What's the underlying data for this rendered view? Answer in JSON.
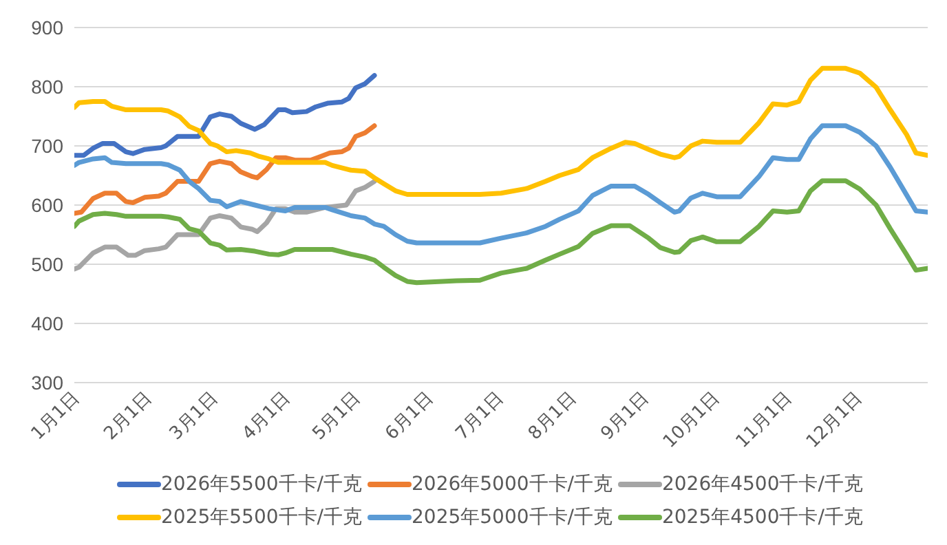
{
  "chart_data": {
    "type": "line",
    "legend": "bottom",
    "grid": "y",
    "marker": "none",
    "line_style": "solid",
    "xlim": [
      "--01-01",
      "--12-31"
    ],
    "xticks": [
      {
        "value": "--01-01",
        "label": "1月1日"
      },
      {
        "value": "--02-01",
        "label": "2月1日"
      },
      {
        "value": "--03-01",
        "label": "3月1日"
      },
      {
        "value": "--04-01",
        "label": "4月1日"
      },
      {
        "value": "--05-01",
        "label": "5月1日"
      },
      {
        "value": "--06-01",
        "label": "6月1日"
      },
      {
        "value": "--07-01",
        "label": "7月1日"
      },
      {
        "value": "--08-01",
        "label": "8月1日"
      },
      {
        "value": "--09-01",
        "label": "9月1日"
      },
      {
        "value": "--10-01",
        "label": "10月1日"
      },
      {
        "value": "--11-01",
        "label": "11月1日"
      },
      {
        "value": "--12-01",
        "label": "12月1日"
      }
    ],
    "ylim": [
      300,
      900
    ],
    "yticks": [
      300,
      400,
      500,
      600,
      700,
      800,
      900
    ],
    "series": [
      {
        "name": "2026年5500千卡/千克",
        "color": "#4472c4",
        "x": [
          "--01-01",
          "--01-05",
          "--01-09",
          "--01-13",
          "--01-18",
          "--01-23",
          "--01-26",
          "--01-31",
          "--02-07",
          "--02-09",
          "--02-14",
          "--02-23",
          "--02-28",
          "--03-04",
          "--03-09",
          "--03-13",
          "--03-19",
          "--03-23",
          "--03-29",
          "--04-01",
          "--04-04",
          "--04-10",
          "--04-14",
          "--04-19",
          "--04-25",
          "--04-28",
          "--05-01",
          "--05-05",
          "--05-09"
        ],
        "values": [
          684,
          684,
          696,
          704,
          704,
          690,
          687,
          694,
          697,
          700,
          716,
          716,
          749,
          754,
          750,
          738,
          728,
          736,
          761,
          761,
          756,
          758,
          766,
          772,
          774,
          780,
          798,
          805,
          819
        ]
      },
      {
        "name": "2026年5000千卡/千克",
        "color": "#ed7d31",
        "x": [
          "--01-01",
          "--01-04",
          "--01-09",
          "--01-14",
          "--01-19",
          "--01-23",
          "--01-26",
          "--01-31",
          "--02-06",
          "--02-09",
          "--02-14",
          "--02-23",
          "--02-28",
          "--03-04",
          "--03-09",
          "--03-13",
          "--03-18",
          "--03-20",
          "--03-24",
          "--03-28",
          "--04-01",
          "--04-05",
          "--04-12",
          "--04-16",
          "--04-20",
          "--04-25",
          "--04-28",
          "--05-01",
          "--05-05",
          "--05-09"
        ],
        "values": [
          586,
          588,
          611,
          620,
          620,
          606,
          604,
          613,
          615,
          620,
          640,
          640,
          670,
          674,
          670,
          656,
          648,
          646,
          660,
          680,
          680,
          676,
          676,
          682,
          688,
          690,
          696,
          716,
          722,
          734
        ]
      },
      {
        "name": "2026年4500千卡/千克",
        "color": "#a5a5a5",
        "x": [
          "--01-01",
          "--01-03",
          "--01-09",
          "--01-14",
          "--01-19",
          "--01-24",
          "--01-27",
          "--01-31",
          "--02-06",
          "--02-09",
          "--02-14",
          "--02-23",
          "--02-28",
          "--03-04",
          "--03-09",
          "--03-13",
          "--03-18",
          "--03-20",
          "--03-24",
          "--03-28",
          "--04-01",
          "--04-05",
          "--04-10",
          "--04-18",
          "--04-27",
          "--05-01",
          "--05-05",
          "--05-09"
        ],
        "values": [
          492,
          495,
          519,
          529,
          529,
          515,
          515,
          523,
          526,
          529,
          550,
          550,
          578,
          582,
          578,
          563,
          559,
          555,
          570,
          594,
          594,
          588,
          588,
          596,
          600,
          624,
          630,
          640
        ]
      },
      {
        "name": "2025年5500千卡/千克",
        "color": "#ffc000",
        "x": [
          "--01-01",
          "--01-03",
          "--01-09",
          "--01-14",
          "--01-17",
          "--01-23",
          "--02-07",
          "--02-10",
          "--02-15",
          "--02-19",
          "--02-23",
          "--02-28",
          "--03-03",
          "--03-07",
          "--03-11",
          "--03-17",
          "--03-21",
          "--03-25",
          "--03-29",
          "--04-18",
          "--04-21",
          "--04-29",
          "--05-05",
          "--05-09",
          "--05-13",
          "--05-18",
          "--05-23",
          "--05-27",
          "--06-04",
          "--06-23",
          "--07-02",
          "--07-13",
          "--07-21",
          "--07-27",
          "--08-04",
          "--08-10",
          "--08-18",
          "--08-24",
          "--08-28",
          "--09-03",
          "--09-08",
          "--09-14",
          "--09-16",
          "--09-21",
          "--09-26",
          "--10-02",
          "--10-12",
          "--10-20",
          "--10-26",
          "--11-01",
          "--11-06",
          "--11-11",
          "--11-16",
          "--11-26",
          "--12-02",
          "--12-09",
          "--12-15",
          "--12-22",
          "--12-26",
          "--12-31"
        ],
        "values": [
          765,
          773,
          775,
          775,
          767,
          761,
          761,
          759,
          749,
          733,
          726,
          704,
          700,
          690,
          692,
          688,
          682,
          678,
          672,
          672,
          667,
          659,
          657,
          646,
          636,
          624,
          618,
          618,
          618,
          618,
          620,
          628,
          640,
          650,
          660,
          680,
          696,
          706,
          704,
          694,
          686,
          680,
          682,
          700,
          708,
          706,
          706,
          739,
          771,
          769,
          775,
          811,
          831,
          831,
          823,
          799,
          761,
          719,
          688,
          684
        ]
      },
      {
        "name": "2025年5000千卡/千克",
        "color": "#5b9bd5",
        "x": [
          "--01-01",
          "--01-03",
          "--01-09",
          "--01-14",
          "--01-17",
          "--01-23",
          "--02-07",
          "--02-10",
          "--02-15",
          "--02-19",
          "--02-23",
          "--02-28",
          "--03-04",
          "--03-07",
          "--03-13",
          "--03-19",
          "--03-25",
          "--04-01",
          "--04-05",
          "--04-18",
          "--04-21",
          "--04-29",
          "--05-05",
          "--05-09",
          "--05-13",
          "--05-18",
          "--05-23",
          "--05-27",
          "--06-04",
          "--06-23",
          "--07-02",
          "--07-13",
          "--07-21",
          "--07-27",
          "--08-04",
          "--08-10",
          "--08-18",
          "--08-28",
          "--09-03",
          "--09-08",
          "--09-14",
          "--09-16",
          "--09-21",
          "--09-26",
          "--10-02",
          "--10-12",
          "--10-20",
          "--10-26",
          "--11-01",
          "--11-06",
          "--11-11",
          "--11-16",
          "--11-26",
          "--12-02",
          "--12-09",
          "--12-15",
          "--12-22",
          "--12-26",
          "--12-31"
        ],
        "values": [
          667,
          672,
          678,
          680,
          672,
          670,
          670,
          668,
          659,
          640,
          628,
          608,
          606,
          597,
          606,
          600,
          594,
          590,
          596,
          596,
          592,
          582,
          578,
          568,
          564,
          550,
          539,
          536,
          536,
          536,
          544,
          553,
          564,
          576,
          590,
          616,
          632,
          632,
          618,
          604,
          588,
          590,
          612,
          620,
          614,
          614,
          648,
          680,
          677,
          677,
          712,
          734,
          734,
          723,
          700,
          664,
          617,
          590,
          588
        ]
      },
      {
        "name": "2025年4500千卡/千克",
        "color": "#70ad47",
        "x": [
          "--01-01",
          "--01-03",
          "--01-09",
          "--01-14",
          "--01-19",
          "--01-23",
          "--02-07",
          "--02-10",
          "--02-15",
          "--02-19",
          "--02-23",
          "--02-28",
          "--03-04",
          "--03-07",
          "--03-13",
          "--03-19",
          "--03-25",
          "--03-29",
          "--04-01",
          "--04-05",
          "--04-21",
          "--04-29",
          "--05-05",
          "--05-09",
          "--05-13",
          "--05-18",
          "--05-23",
          "--05-27",
          "--06-13",
          "--06-23",
          "--07-02",
          "--07-13",
          "--07-21",
          "--07-27",
          "--08-04",
          "--08-10",
          "--08-18",
          "--08-26",
          "--09-03",
          "--09-08",
          "--09-14",
          "--09-16",
          "--09-21",
          "--09-26",
          "--10-02",
          "--10-12",
          "--10-20",
          "--10-26",
          "--11-01",
          "--11-06",
          "--11-11",
          "--11-16",
          "--11-26",
          "--12-02",
          "--12-09",
          "--12-15",
          "--12-22",
          "--12-26",
          "--12-31"
        ],
        "values": [
          564,
          573,
          584,
          586,
          584,
          581,
          581,
          580,
          576,
          560,
          556,
          536,
          532,
          524,
          525,
          522,
          517,
          516,
          519,
          525,
          525,
          517,
          512,
          507,
          495,
          481,
          471,
          469,
          472,
          473,
          485,
          493,
          507,
          517,
          530,
          552,
          565,
          565,
          544,
          528,
          520,
          521,
          540,
          546,
          538,
          538,
          564,
          590,
          588,
          590,
          624,
          641,
          641,
          627,
          600,
          560,
          516,
          490,
          493
        ]
      }
    ]
  }
}
